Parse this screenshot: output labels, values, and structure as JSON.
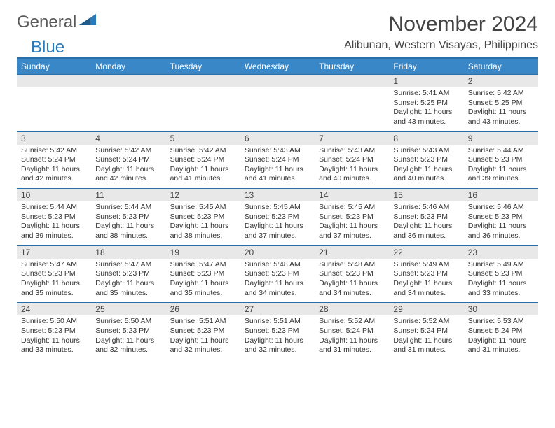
{
  "brand": {
    "part1": "General",
    "part2": "Blue"
  },
  "title": "November 2024",
  "location": "Alibunan, Western Visayas, Philippines",
  "colors": {
    "header_bg": "#3a87c8",
    "header_border": "#2a6ea8",
    "daynum_bg": "#e8e8e8",
    "text": "#333333",
    "page_bg": "#ffffff"
  },
  "day_headers": [
    "Sunday",
    "Monday",
    "Tuesday",
    "Wednesday",
    "Thursday",
    "Friday",
    "Saturday"
  ],
  "weeks": [
    [
      {
        "empty": true
      },
      {
        "empty": true
      },
      {
        "empty": true
      },
      {
        "empty": true
      },
      {
        "empty": true
      },
      {
        "num": "1",
        "sunrise": "Sunrise: 5:41 AM",
        "sunset": "Sunset: 5:25 PM",
        "day1": "Daylight: 11 hours",
        "day2": "and 43 minutes."
      },
      {
        "num": "2",
        "sunrise": "Sunrise: 5:42 AM",
        "sunset": "Sunset: 5:25 PM",
        "day1": "Daylight: 11 hours",
        "day2": "and 43 minutes."
      }
    ],
    [
      {
        "num": "3",
        "sunrise": "Sunrise: 5:42 AM",
        "sunset": "Sunset: 5:24 PM",
        "day1": "Daylight: 11 hours",
        "day2": "and 42 minutes."
      },
      {
        "num": "4",
        "sunrise": "Sunrise: 5:42 AM",
        "sunset": "Sunset: 5:24 PM",
        "day1": "Daylight: 11 hours",
        "day2": "and 42 minutes."
      },
      {
        "num": "5",
        "sunrise": "Sunrise: 5:42 AM",
        "sunset": "Sunset: 5:24 PM",
        "day1": "Daylight: 11 hours",
        "day2": "and 41 minutes."
      },
      {
        "num": "6",
        "sunrise": "Sunrise: 5:43 AM",
        "sunset": "Sunset: 5:24 PM",
        "day1": "Daylight: 11 hours",
        "day2": "and 41 minutes."
      },
      {
        "num": "7",
        "sunrise": "Sunrise: 5:43 AM",
        "sunset": "Sunset: 5:24 PM",
        "day1": "Daylight: 11 hours",
        "day2": "and 40 minutes."
      },
      {
        "num": "8",
        "sunrise": "Sunrise: 5:43 AM",
        "sunset": "Sunset: 5:23 PM",
        "day1": "Daylight: 11 hours",
        "day2": "and 40 minutes."
      },
      {
        "num": "9",
        "sunrise": "Sunrise: 5:44 AM",
        "sunset": "Sunset: 5:23 PM",
        "day1": "Daylight: 11 hours",
        "day2": "and 39 minutes."
      }
    ],
    [
      {
        "num": "10",
        "sunrise": "Sunrise: 5:44 AM",
        "sunset": "Sunset: 5:23 PM",
        "day1": "Daylight: 11 hours",
        "day2": "and 39 minutes."
      },
      {
        "num": "11",
        "sunrise": "Sunrise: 5:44 AM",
        "sunset": "Sunset: 5:23 PM",
        "day1": "Daylight: 11 hours",
        "day2": "and 38 minutes."
      },
      {
        "num": "12",
        "sunrise": "Sunrise: 5:45 AM",
        "sunset": "Sunset: 5:23 PM",
        "day1": "Daylight: 11 hours",
        "day2": "and 38 minutes."
      },
      {
        "num": "13",
        "sunrise": "Sunrise: 5:45 AM",
        "sunset": "Sunset: 5:23 PM",
        "day1": "Daylight: 11 hours",
        "day2": "and 37 minutes."
      },
      {
        "num": "14",
        "sunrise": "Sunrise: 5:45 AM",
        "sunset": "Sunset: 5:23 PM",
        "day1": "Daylight: 11 hours",
        "day2": "and 37 minutes."
      },
      {
        "num": "15",
        "sunrise": "Sunrise: 5:46 AM",
        "sunset": "Sunset: 5:23 PM",
        "day1": "Daylight: 11 hours",
        "day2": "and 36 minutes."
      },
      {
        "num": "16",
        "sunrise": "Sunrise: 5:46 AM",
        "sunset": "Sunset: 5:23 PM",
        "day1": "Daylight: 11 hours",
        "day2": "and 36 minutes."
      }
    ],
    [
      {
        "num": "17",
        "sunrise": "Sunrise: 5:47 AM",
        "sunset": "Sunset: 5:23 PM",
        "day1": "Daylight: 11 hours",
        "day2": "and 35 minutes."
      },
      {
        "num": "18",
        "sunrise": "Sunrise: 5:47 AM",
        "sunset": "Sunset: 5:23 PM",
        "day1": "Daylight: 11 hours",
        "day2": "and 35 minutes."
      },
      {
        "num": "19",
        "sunrise": "Sunrise: 5:47 AM",
        "sunset": "Sunset: 5:23 PM",
        "day1": "Daylight: 11 hours",
        "day2": "and 35 minutes."
      },
      {
        "num": "20",
        "sunrise": "Sunrise: 5:48 AM",
        "sunset": "Sunset: 5:23 PM",
        "day1": "Daylight: 11 hours",
        "day2": "and 34 minutes."
      },
      {
        "num": "21",
        "sunrise": "Sunrise: 5:48 AM",
        "sunset": "Sunset: 5:23 PM",
        "day1": "Daylight: 11 hours",
        "day2": "and 34 minutes."
      },
      {
        "num": "22",
        "sunrise": "Sunrise: 5:49 AM",
        "sunset": "Sunset: 5:23 PM",
        "day1": "Daylight: 11 hours",
        "day2": "and 34 minutes."
      },
      {
        "num": "23",
        "sunrise": "Sunrise: 5:49 AM",
        "sunset": "Sunset: 5:23 PM",
        "day1": "Daylight: 11 hours",
        "day2": "and 33 minutes."
      }
    ],
    [
      {
        "num": "24",
        "sunrise": "Sunrise: 5:50 AM",
        "sunset": "Sunset: 5:23 PM",
        "day1": "Daylight: 11 hours",
        "day2": "and 33 minutes."
      },
      {
        "num": "25",
        "sunrise": "Sunrise: 5:50 AM",
        "sunset": "Sunset: 5:23 PM",
        "day1": "Daylight: 11 hours",
        "day2": "and 32 minutes."
      },
      {
        "num": "26",
        "sunrise": "Sunrise: 5:51 AM",
        "sunset": "Sunset: 5:23 PM",
        "day1": "Daylight: 11 hours",
        "day2": "and 32 minutes."
      },
      {
        "num": "27",
        "sunrise": "Sunrise: 5:51 AM",
        "sunset": "Sunset: 5:23 PM",
        "day1": "Daylight: 11 hours",
        "day2": "and 32 minutes."
      },
      {
        "num": "28",
        "sunrise": "Sunrise: 5:52 AM",
        "sunset": "Sunset: 5:24 PM",
        "day1": "Daylight: 11 hours",
        "day2": "and 31 minutes."
      },
      {
        "num": "29",
        "sunrise": "Sunrise: 5:52 AM",
        "sunset": "Sunset: 5:24 PM",
        "day1": "Daylight: 11 hours",
        "day2": "and 31 minutes."
      },
      {
        "num": "30",
        "sunrise": "Sunrise: 5:53 AM",
        "sunset": "Sunset: 5:24 PM",
        "day1": "Daylight: 11 hours",
        "day2": "and 31 minutes."
      }
    ]
  ]
}
